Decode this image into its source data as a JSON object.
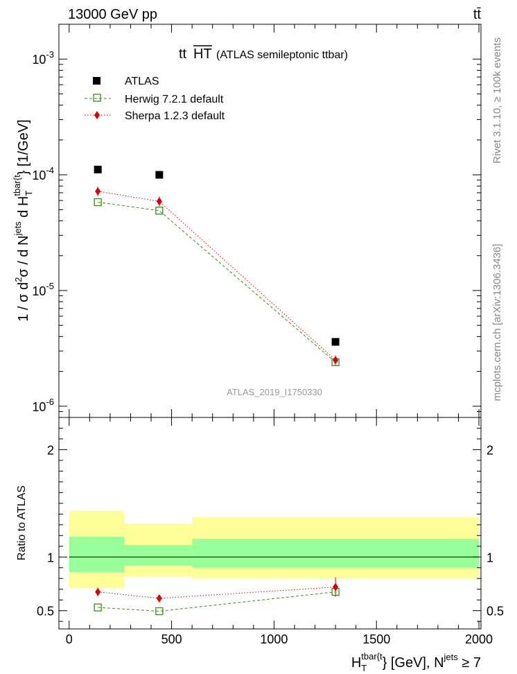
{
  "header": {
    "energy_label": "13000 GeV pp",
    "process_label": "tt̄"
  },
  "side_labels": {
    "rivet": "Rivet 3.1.10, ≥ 100k events",
    "source": "mcplots.cern.ch [arXiv:1306.3436]"
  },
  "chart_data": [
    {
      "type": "scatter",
      "panel": "main",
      "title_main": "tt",
      "title_over": "HT",
      "title_suffix": "(ATLAS semileptonic ttbar)",
      "ylabel": {
        "p1": "1 / σ d",
        "sup2": "2",
        "p2": "σ / d N",
        "sup_jets": "jets",
        "p3": " d H",
        "sub_T": "T",
        "sup_tbar": "tbar{t",
        "p4": "} [1/GeV]"
      },
      "yscale": "log",
      "ylim": [
        8e-07,
        0.002
      ],
      "xlim": [
        -50,
        2010
      ],
      "ytick_labels": [
        {
          "value": 0.001,
          "base": "10",
          "exp": "-3"
        },
        {
          "value": 0.0001,
          "base": "10",
          "exp": "-4"
        },
        {
          "value": 1e-05,
          "base": "10",
          "exp": "-5"
        },
        {
          "value": 1e-06,
          "base": "10",
          "exp": "-6"
        }
      ],
      "analysis_label": "ATLAS_2019_I1750330",
      "legend_position": "top-left",
      "series": [
        {
          "name": "ATLAS",
          "marker": "square-filled",
          "color": "#000000",
          "points": [
            {
              "x": 140,
              "y": 0.000111
            },
            {
              "x": 440,
              "y": 0.0001
            },
            {
              "x": 1300,
              "y": 3.6e-06
            }
          ]
        },
        {
          "name": "Herwig 7.2.1 default",
          "marker": "square-open",
          "color": "#3a8a1a",
          "line": "dashed",
          "points": [
            {
              "x": 140,
              "y": 5.8e-05
            },
            {
              "x": 440,
              "y": 4.9e-05
            },
            {
              "x": 1300,
              "y": 2.4e-06
            }
          ]
        },
        {
          "name": "Sherpa 1.2.3 default",
          "marker": "diamond-filled",
          "color": "#dd0000",
          "line": "dotted",
          "points": [
            {
              "x": 140,
              "y": 7.2e-05
            },
            {
              "x": 440,
              "y": 5.9e-05
            },
            {
              "x": 1300,
              "y": 2.5e-06
            }
          ]
        }
      ]
    },
    {
      "type": "scatter",
      "panel": "ratio",
      "ylabel": "Ratio to ATLAS",
      "ylim": [
        0.33,
        2.3
      ],
      "xlim": [
        -50,
        2010
      ],
      "ytick_labels": [
        "0.5",
        "1",
        "2"
      ],
      "ytick_values": [
        0.5,
        1,
        2
      ],
      "xtick_labels": [
        "0",
        "500",
        "1000",
        "1500",
        "2000"
      ],
      "xtick_values": [
        0,
        500,
        1000,
        1500,
        2000
      ],
      "xlabel": {
        "p1": "H",
        "sub_T": "T",
        "sup_tbar": "tbar{t",
        "p2": "} [GeV], N",
        "sup_jets": "jets",
        "p3": " ≥ 7"
      },
      "bands": [
        {
          "x0": 0,
          "x1": 270,
          "yellow": [
            0.71,
            1.43
          ],
          "green": [
            0.86,
            1.19
          ]
        },
        {
          "x0": 270,
          "x1": 600,
          "yellow": [
            0.82,
            1.31
          ],
          "green": [
            0.92,
            1.11
          ]
        },
        {
          "x0": 600,
          "x1": 2000,
          "yellow": [
            0.8,
            1.37
          ],
          "green": [
            0.9,
            1.17
          ]
        }
      ],
      "band_colors": {
        "yellow": "#ffff99",
        "green": "#99ff99"
      },
      "series": [
        {
          "name": "Herwig 7.2.1 default",
          "marker": "square-open",
          "color": "#3a8a1a",
          "line": "dashed",
          "points": [
            {
              "x": 140,
              "y": 0.53
            },
            {
              "x": 440,
              "y": 0.495
            },
            {
              "x": 1300,
              "y": 0.675
            }
          ]
        },
        {
          "name": "Sherpa 1.2.3 default",
          "marker": "diamond-filled",
          "color": "#dd0000",
          "line": "dotted",
          "points": [
            {
              "x": 140,
              "y": 0.675,
              "err": 0.04
            },
            {
              "x": 440,
              "y": 0.615,
              "err": 0.035
            },
            {
              "x": 1300,
              "y": 0.72,
              "err": 0.09
            }
          ]
        }
      ]
    }
  ]
}
